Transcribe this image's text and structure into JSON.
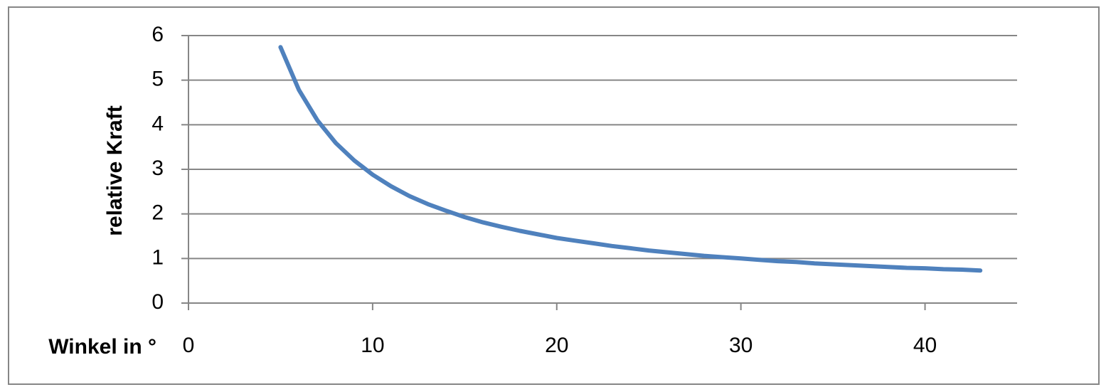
{
  "chart_data": {
    "type": "line",
    "x_label": "Winkel in °",
    "y_label": "relative Kraft",
    "x": [
      5,
      6,
      7,
      8,
      9,
      10,
      11,
      12,
      13,
      14,
      15,
      16,
      17,
      18,
      19,
      20,
      21,
      22,
      23,
      24,
      25,
      26,
      27,
      28,
      29,
      30,
      31,
      32,
      33,
      34,
      35,
      36,
      37,
      38,
      39,
      40,
      41,
      42,
      43
    ],
    "series": [
      {
        "color": "#4f81bd",
        "values": [
          5.74,
          4.78,
          4.1,
          3.59,
          3.2,
          2.88,
          2.62,
          2.4,
          2.22,
          2.07,
          1.93,
          1.81,
          1.71,
          1.62,
          1.54,
          1.46,
          1.4,
          1.34,
          1.28,
          1.23,
          1.18,
          1.14,
          1.1,
          1.06,
          1.03,
          1.0,
          0.97,
          0.94,
          0.92,
          0.89,
          0.87,
          0.85,
          0.83,
          0.81,
          0.79,
          0.78,
          0.76,
          0.75,
          0.73
        ]
      }
    ],
    "xlim": [
      0,
      45
    ],
    "xticks": [
      0,
      10,
      20,
      30,
      40
    ],
    "ylim": [
      0,
      6
    ],
    "yticks": [
      0,
      1,
      2,
      3,
      4,
      5,
      6
    ],
    "grid": true
  }
}
